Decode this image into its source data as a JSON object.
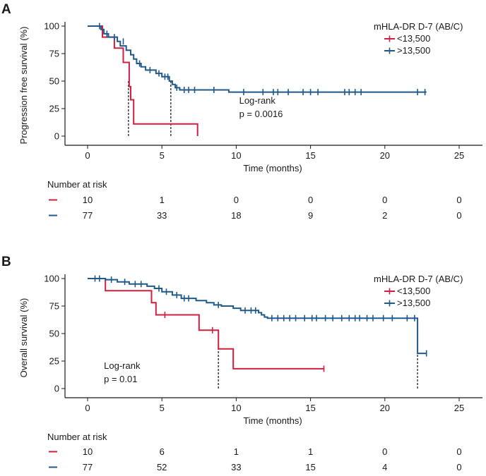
{
  "chart_data": [
    {
      "type": "line",
      "panel": "A",
      "xlabel": "Time (months)",
      "ylabel": "Progression free survival (%)",
      "xlim": [
        -1.5,
        26.5
      ],
      "ylim": [
        0,
        100
      ],
      "xticks": [
        0,
        5,
        10,
        15,
        20,
        25
      ],
      "yticks": [
        0,
        25,
        50,
        75,
        100
      ],
      "grid": false,
      "legend": {
        "title": "mHLA-DR D-7 (AB/C)",
        "placement": "top-right"
      },
      "annotation": [
        "Log-rank",
        "p = 0.0016"
      ],
      "annotation_at": [
        10.2,
        29.5
      ],
      "median_lines": [
        2.75,
        5.6
      ],
      "series": [
        {
          "name": "<13,500",
          "color": "#d11f3f",
          "steps": [
            [
              0,
              100
            ],
            [
              1,
              100
            ],
            [
              1,
              90
            ],
            [
              1.8,
              90
            ],
            [
              1.8,
              80
            ],
            [
              2.4,
              80
            ],
            [
              2.4,
              67
            ],
            [
              2.8,
              67
            ],
            [
              2.8,
              45
            ],
            [
              2.9,
              45
            ],
            [
              2.9,
              33
            ],
            [
              3.1,
              33
            ],
            [
              3.1,
              11
            ],
            [
              7.4,
              11
            ],
            [
              7.4,
              0
            ]
          ],
          "censored": []
        },
        {
          "name": ">13,500",
          "color": "#1f5a8a",
          "steps": [
            [
              0,
              100
            ],
            [
              0.9,
              100
            ],
            [
              0.9,
              97
            ],
            [
              1.1,
              97
            ],
            [
              1.1,
              93
            ],
            [
              1.4,
              93
            ],
            [
              1.4,
              90
            ],
            [
              2.0,
              90
            ],
            [
              2.0,
              86
            ],
            [
              2.2,
              86
            ],
            [
              2.2,
              82
            ],
            [
              2.6,
              82
            ],
            [
              2.6,
              78
            ],
            [
              2.9,
              78
            ],
            [
              2.9,
              74
            ],
            [
              3.1,
              74
            ],
            [
              3.1,
              70
            ],
            [
              3.3,
              70
            ],
            [
              3.3,
              66
            ],
            [
              3.6,
              66
            ],
            [
              3.6,
              63
            ],
            [
              3.9,
              63
            ],
            [
              3.9,
              60
            ],
            [
              4.6,
              60
            ],
            [
              4.6,
              57
            ],
            [
              5.0,
              57
            ],
            [
              5.0,
              54
            ],
            [
              5.5,
              54
            ],
            [
              5.5,
              50
            ],
            [
              5.7,
              50
            ],
            [
              5.7,
              47
            ],
            [
              5.9,
              47
            ],
            [
              5.9,
              44
            ],
            [
              6.2,
              44
            ],
            [
              6.2,
              42
            ],
            [
              9.5,
              42
            ],
            [
              9.5,
              40
            ],
            [
              22.8,
              40
            ]
          ],
          "censored": [
            [
              0.8,
              100
            ],
            [
              1.3,
              93
            ],
            [
              1.8,
              90
            ],
            [
              2.4,
              86
            ],
            [
              3.5,
              66
            ],
            [
              4.2,
              60
            ],
            [
              4.8,
              57
            ],
            [
              5.2,
              54
            ],
            [
              5.4,
              54
            ],
            [
              6.0,
              44
            ],
            [
              6.5,
              42
            ],
            [
              6.8,
              42
            ],
            [
              7.2,
              42
            ],
            [
              8.5,
              42
            ],
            [
              10.5,
              40
            ],
            [
              11.8,
              40
            ],
            [
              12.5,
              40
            ],
            [
              12.8,
              40
            ],
            [
              13.5,
              40
            ],
            [
              14.5,
              40
            ],
            [
              15.0,
              40
            ],
            [
              15.5,
              40
            ],
            [
              17.3,
              40
            ],
            [
              17.6,
              40
            ],
            [
              18.0,
              40
            ],
            [
              18.4,
              40
            ],
            [
              22.2,
              40
            ],
            [
              22.7,
              40
            ]
          ]
        }
      ],
      "risk_table": {
        "title": "Number at risk",
        "times": [
          0,
          5,
          10,
          15,
          20,
          25
        ],
        "rows": [
          {
            "color": "#d11f3f",
            "values": [
              "10",
              "1",
              "0",
              "0",
              "0",
              "0"
            ]
          },
          {
            "color": "#1f5a8a",
            "values": [
              "77",
              "33",
              "18",
              "9",
              "2",
              "0"
            ]
          }
        ]
      }
    },
    {
      "type": "line",
      "panel": "B",
      "xlabel": "Time (months)",
      "ylabel": "Overall survival (%)",
      "xlim": [
        -1.5,
        26.5
      ],
      "ylim": [
        0,
        100
      ],
      "xticks": [
        0,
        5,
        10,
        15,
        20,
        25
      ],
      "yticks": [
        0,
        25,
        50,
        75,
        100
      ],
      "grid": false,
      "legend": {
        "title": "mHLA-DR D-7 (AB/C)",
        "placement": "top-right"
      },
      "annotation": [
        "Log-rank",
        "p = 0.01"
      ],
      "annotation_at": [
        1.1,
        18
      ],
      "median_lines": [
        8.8,
        22.2
      ],
      "series": [
        {
          "name": "<13,500",
          "color": "#d11f3f",
          "steps": [
            [
              0,
              100
            ],
            [
              1.2,
              100
            ],
            [
              1.2,
              89
            ],
            [
              4.3,
              89
            ],
            [
              4.3,
              78
            ],
            [
              4.6,
              78
            ],
            [
              4.6,
              67
            ],
            [
              7.5,
              67
            ],
            [
              7.5,
              53
            ],
            [
              8.8,
              53
            ],
            [
              8.8,
              36
            ],
            [
              9.8,
              36
            ],
            [
              9.8,
              18
            ],
            [
              15.9,
              18
            ]
          ],
          "censored": [
            [
              5.2,
              67
            ],
            [
              8.4,
              53
            ],
            [
              15.9,
              18
            ]
          ]
        },
        {
          "name": ">13,500",
          "color": "#1f5a8a",
          "steps": [
            [
              0,
              100
            ],
            [
              1.2,
              100
            ],
            [
              1.2,
              99
            ],
            [
              2.0,
              99
            ],
            [
              2.0,
              97
            ],
            [
              2.8,
              97
            ],
            [
              2.8,
              95
            ],
            [
              4.0,
              95
            ],
            [
              4.0,
              93
            ],
            [
              4.5,
              93
            ],
            [
              4.5,
              91
            ],
            [
              5.0,
              91
            ],
            [
              5.0,
              88
            ],
            [
              5.7,
              88
            ],
            [
              5.7,
              85
            ],
            [
              6.3,
              85
            ],
            [
              6.3,
              82
            ],
            [
              7.3,
              82
            ],
            [
              7.3,
              80
            ],
            [
              8.0,
              80
            ],
            [
              8.0,
              78
            ],
            [
              8.5,
              78
            ],
            [
              8.5,
              76
            ],
            [
              9.0,
              76
            ],
            [
              9.0,
              75
            ],
            [
              9.8,
              75
            ],
            [
              9.8,
              73
            ],
            [
              10.3,
              73
            ],
            [
              10.3,
              71
            ],
            [
              11.5,
              71
            ],
            [
              11.5,
              69
            ],
            [
              11.7,
              69
            ],
            [
              11.7,
              67
            ],
            [
              11.9,
              67
            ],
            [
              11.9,
              65
            ],
            [
              12.1,
              65
            ],
            [
              12.1,
              64
            ],
            [
              22.2,
              64
            ],
            [
              22.2,
              32
            ],
            [
              22.8,
              32
            ]
          ],
          "censored": [
            [
              0.5,
              100
            ],
            [
              0.8,
              100
            ],
            [
              1.6,
              99
            ],
            [
              2.5,
              97
            ],
            [
              3.2,
              95
            ],
            [
              3.6,
              95
            ],
            [
              4.8,
              91
            ],
            [
              5.3,
              88
            ],
            [
              6.0,
              85
            ],
            [
              6.5,
              82
            ],
            [
              6.8,
              82
            ],
            [
              8.8,
              76
            ],
            [
              10.6,
              71
            ],
            [
              11.0,
              71
            ],
            [
              11.3,
              71
            ],
            [
              12.4,
              64
            ],
            [
              12.8,
              64
            ],
            [
              13.2,
              64
            ],
            [
              13.6,
              64
            ],
            [
              14.0,
              64
            ],
            [
              14.6,
              64
            ],
            [
              15.1,
              64
            ],
            [
              15.4,
              64
            ],
            [
              16.0,
              64
            ],
            [
              16.5,
              64
            ],
            [
              17.1,
              64
            ],
            [
              17.6,
              64
            ],
            [
              18.0,
              64
            ],
            [
              18.3,
              64
            ],
            [
              18.8,
              64
            ],
            [
              19.2,
              64
            ],
            [
              19.9,
              64
            ],
            [
              20.5,
              64
            ],
            [
              21.5,
              64
            ],
            [
              22.0,
              64
            ],
            [
              22.8,
              32
            ]
          ]
        }
      ],
      "risk_table": {
        "title": "Number at risk",
        "times": [
          0,
          5,
          10,
          15,
          20,
          25
        ],
        "rows": [
          {
            "color": "#d11f3f",
            "values": [
              "10",
              "6",
              "1",
              "1",
              "0",
              "0"
            ]
          },
          {
            "color": "#1f5a8a",
            "values": [
              "77",
              "52",
              "33",
              "15",
              "4",
              "0"
            ]
          }
        ]
      }
    }
  ]
}
